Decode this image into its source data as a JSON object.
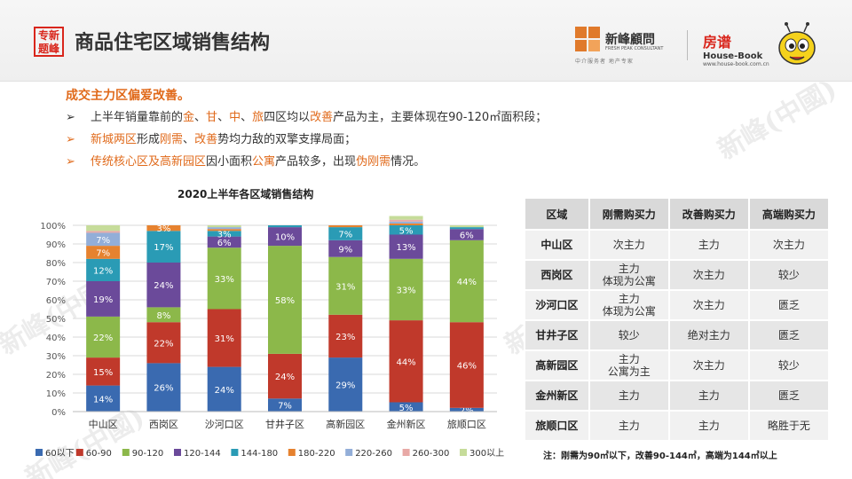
{
  "header": {
    "badge_text": "专新题峰",
    "title": "商品住宅区域销售结构",
    "brand1_name": "新峰顧問",
    "brand1_en": "FRESH PEAK CONSULTANT",
    "brand1_slogan": "中介服务者 地产专家",
    "brand2_cn": "房谱",
    "brand2_en": "House-Book",
    "brand2_url": "www.house-book.com.cn"
  },
  "intro": {
    "headline": "成交主力区偏爱改善。",
    "bullets": [
      {
        "arrow": "➢",
        "parts": [
          {
            "t": "上半年销量靠前的",
            "h": false
          },
          {
            "t": "金",
            "h": true
          },
          {
            "t": "、",
            "h": false
          },
          {
            "t": "甘",
            "h": true
          },
          {
            "t": "、",
            "h": false
          },
          {
            "t": "中",
            "h": true
          },
          {
            "t": "、",
            "h": false
          },
          {
            "t": "旅",
            "h": true
          },
          {
            "t": "四区均以",
            "h": false
          },
          {
            "t": "改善",
            "h": true
          },
          {
            "t": "产品为主，主要体现在90-120㎡面积段；",
            "h": false
          }
        ]
      },
      {
        "arrow": "➢",
        "parts": [
          {
            "t": "新城两区",
            "h": true
          },
          {
            "t": "形成",
            "h": false
          },
          {
            "t": "刚需",
            "h": true
          },
          {
            "t": "、",
            "h": false
          },
          {
            "t": "改善",
            "h": true
          },
          {
            "t": "势均力敌的双擎支撑局面；",
            "h": false
          }
        ]
      },
      {
        "arrow": "➢",
        "parts": [
          {
            "t": "传统核心区及高新园区",
            "h": true
          },
          {
            "t": "因小面积",
            "h": false
          },
          {
            "t": "公寓",
            "h": true
          },
          {
            "t": "产品较多，出现",
            "h": false
          },
          {
            "t": "伪刚需",
            "h": true
          },
          {
            "t": "情况。",
            "h": false
          }
        ]
      }
    ]
  },
  "chart_data": {
    "type": "bar",
    "stacked": true,
    "title": "2020上半年各区域销售结构",
    "categories": [
      "中山区",
      "西岗区",
      "沙河口区",
      "甘井子区",
      "高新园区",
      "金州新区",
      "旅顺口区"
    ],
    "y_ticks": [
      "0%",
      "10%",
      "20%",
      "30%",
      "40%",
      "50%",
      "60%",
      "70%",
      "80%",
      "90%",
      "100%"
    ],
    "ylim": [
      0,
      100
    ],
    "grid": true,
    "legend_position": "bottom",
    "series": [
      {
        "name": "60以下",
        "color": "#3a6ab0",
        "values": [
          14,
          26,
          24,
          7,
          29,
          5,
          2
        ],
        "labels": [
          "14%",
          "26%",
          "24%",
          "7%",
          "29%",
          "5%",
          "2%"
        ]
      },
      {
        "name": "60-90",
        "color": "#c0392b",
        "values": [
          15,
          22,
          31,
          24,
          23,
          44,
          46
        ],
        "labels": [
          "15%",
          "22%",
          "31%",
          "24%",
          "23%",
          "44%",
          "46%"
        ]
      },
      {
        "name": "90-120",
        "color": "#8cb84a",
        "values": [
          22,
          8,
          33,
          58,
          31,
          33,
          44
        ],
        "labels": [
          "22%",
          "8%",
          "33%",
          "58%",
          "31%",
          "33%",
          "44%"
        ]
      },
      {
        "name": "120-144",
        "color": "#6b4a9a",
        "values": [
          19,
          24,
          6,
          10,
          9,
          13,
          6
        ],
        "labels": [
          "19%",
          "24%",
          "6%",
          "10%",
          "9%",
          "13%",
          "6%"
        ]
      },
      {
        "name": "144-180",
        "color": "#2a9bb5",
        "values": [
          12,
          17,
          3,
          1,
          7,
          5,
          1
        ],
        "labels": [
          "12%",
          "17%",
          "3%",
          "",
          "7%",
          "5%",
          ""
        ]
      },
      {
        "name": "180-220",
        "color": "#e6822f",
        "values": [
          7,
          3,
          1,
          0,
          1,
          1,
          0
        ],
        "labels": [
          "7%",
          "3%",
          "",
          "",
          "",
          "",
          ""
        ]
      },
      {
        "name": "220-260",
        "color": "#93aed8",
        "values": [
          7,
          0,
          1,
          0,
          0,
          1,
          0
        ],
        "labels": [
          "7%",
          "",
          "",
          "",
          "",
          "",
          ""
        ]
      },
      {
        "name": "260-300",
        "color": "#e8a9a6",
        "values": [
          1,
          0,
          0,
          0,
          0,
          1,
          0
        ],
        "labels": [
          "",
          "",
          "",
          "",
          "",
          "",
          ""
        ]
      },
      {
        "name": "300以上",
        "color": "#c6dc9a",
        "values": [
          3,
          0,
          1,
          0,
          0,
          2,
          1
        ],
        "labels": [
          "",
          "",
          "",
          "",
          "",
          "",
          ""
        ]
      }
    ]
  },
  "table": {
    "headers": [
      "区域",
      "刚需购买力",
      "改善购买力",
      "高端购买力"
    ],
    "rows": [
      [
        "中山区",
        "次主力",
        "主力",
        "次主力"
      ],
      [
        "西岗区",
        "主力\n体现为公寓",
        "次主力",
        "较少"
      ],
      [
        "沙河口区",
        "主力\n体现为公寓",
        "次主力",
        "匮乏"
      ],
      [
        "甘井子区",
        "较少",
        "绝对主力",
        "匮乏"
      ],
      [
        "高新园区",
        "主力\n公寓为主",
        "次主力",
        "较少"
      ],
      [
        "金州新区",
        "主力",
        "主力",
        "匮乏"
      ],
      [
        "旅顺口区",
        "主力",
        "主力",
        "略胜于无"
      ]
    ],
    "note": "注：刚需为90㎡以下，改善90-144㎡，高端为144㎡以上"
  },
  "watermark_text": "新峰(中國)"
}
